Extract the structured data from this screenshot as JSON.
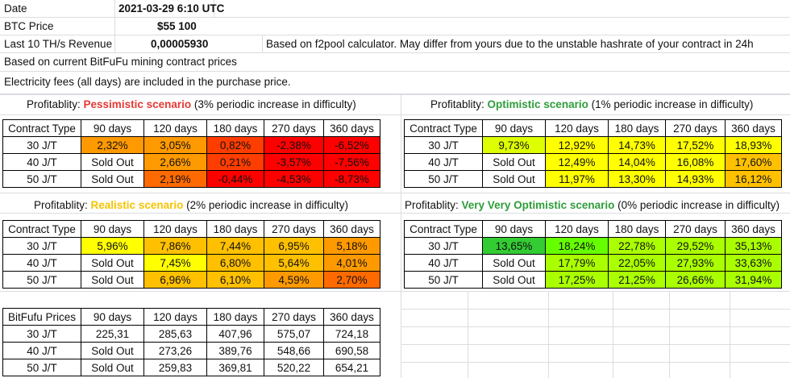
{
  "header": {
    "date_label": "Date",
    "date_value": "2021-03-29 6:10  UTC",
    "btc_label": "BTC Price",
    "btc_value": "$55 100",
    "revenue_label": "Last 10 TH/s Revenue",
    "revenue_value": "0,00005930",
    "revenue_note": "Based on f2pool calculator. May differ from yours due to the unstable hashrate of your contract in 24h",
    "contract_note": "Based on current BitFuFu mining contract prices",
    "electricity_note": "Electricity fees (all days) are included in the purchase price."
  },
  "colors": {
    "red": "#ff0000",
    "red_orange": "#ff3d00",
    "orange_red": "#ff6a00",
    "orange": "#ff9900",
    "amber": "#ffc000",
    "yellow": "#ffff00",
    "yellow_green": "#ddff00",
    "lime": "#aaff00",
    "light_green": "#66ff00",
    "green": "#33cc33"
  },
  "pessimistic": {
    "title_prefix": "Profitablity: ",
    "scenario": "Pessimistic scenario",
    "title_suffix": " (3% periodic increase in difficulty)",
    "headers": [
      "Contract Type",
      "90 days",
      "120 days",
      "180 days",
      "270 days",
      "360 days"
    ],
    "rows": [
      {
        "cells": [
          "30 J/T",
          "2,32%",
          "3,05%",
          "0,82%",
          "-2,38%",
          "-6,52%"
        ],
        "colors": [
          "",
          "orange",
          "orange",
          "red_orange",
          "red",
          "red"
        ]
      },
      {
        "cells": [
          "40 J/T",
          "Sold Out",
          "2,66%",
          "0,21%",
          "-3,57%",
          "-7,56%"
        ],
        "colors": [
          "",
          "",
          "orange",
          "red_orange",
          "red",
          "red"
        ]
      },
      {
        "cells": [
          "50 J/T",
          "Sold Out",
          "2,19%",
          "-0,44%",
          "-4,53%",
          "-8,73%"
        ],
        "colors": [
          "",
          "",
          "orange_red",
          "red",
          "red",
          "red"
        ]
      }
    ]
  },
  "optimistic": {
    "title_prefix": "Profitablity: ",
    "scenario": "Optimistic scenario",
    "title_suffix": " (1% periodic increase in difficulty)",
    "headers": [
      "Contract Type",
      "90 days",
      "120 days",
      "180 days",
      "270 days",
      "360 days"
    ],
    "rows": [
      {
        "cells": [
          "30 J/T",
          "9,73%",
          "12,92%",
          "14,73%",
          "17,52%",
          "18,93%"
        ],
        "colors": [
          "",
          "yellow_green",
          "yellow",
          "yellow",
          "yellow",
          "yellow"
        ]
      },
      {
        "cells": [
          "40 J/T",
          "Sold Out",
          "12,49%",
          "14,04%",
          "16,08%",
          "17,60%"
        ],
        "colors": [
          "",
          "",
          "yellow",
          "yellow",
          "yellow",
          "amber"
        ]
      },
      {
        "cells": [
          "50 J/T",
          "Sold Out",
          "11,97%",
          "13,30%",
          "14,93%",
          "16,12%"
        ],
        "colors": [
          "",
          "",
          "yellow",
          "yellow",
          "yellow",
          "amber"
        ]
      }
    ]
  },
  "realistic": {
    "title_prefix": "Profitablity: ",
    "scenario": "Realistic scenario",
    "title_suffix": " (2% periodic increase in difficulty)",
    "headers": [
      "Contract Type",
      "90 days",
      "120 days",
      "180 days",
      "270 days",
      "360 days"
    ],
    "rows": [
      {
        "cells": [
          "30 J/T",
          "5,96%",
          "7,86%",
          "7,44%",
          "6,95%",
          "5,18%"
        ],
        "colors": [
          "",
          "yellow",
          "amber",
          "amber",
          "amber",
          "orange"
        ]
      },
      {
        "cells": [
          "40 J/T",
          "Sold Out",
          "7,45%",
          "6,80%",
          "5,64%",
          "4,01%"
        ],
        "colors": [
          "",
          "",
          "yellow",
          "amber",
          "amber",
          "orange"
        ]
      },
      {
        "cells": [
          "50 J/T",
          "Sold Out",
          "6,96%",
          "6,10%",
          "4,59%",
          "2,70%"
        ],
        "colors": [
          "",
          "",
          "amber",
          "amber",
          "orange",
          "orange_red"
        ]
      }
    ]
  },
  "very_optimistic": {
    "title_prefix": "Profitablity: ",
    "scenario": "Very Very Optimistic scenario",
    "title_suffix": " (0% periodic increase in difficulty)",
    "headers": [
      "Contract Type",
      "90 days",
      "120 days",
      "180 days",
      "270 days",
      "360 days"
    ],
    "rows": [
      {
        "cells": [
          "30 J/T",
          "13,65%",
          "18,24%",
          "22,78%",
          "29,52%",
          "35,13%"
        ],
        "colors": [
          "",
          "green",
          "light_green",
          "lime",
          "lime",
          "lime"
        ]
      },
      {
        "cells": [
          "40 J/T",
          "Sold Out",
          "17,79%",
          "22,05%",
          "27,93%",
          "33,63%"
        ],
        "colors": [
          "",
          "",
          "lime",
          "lime",
          "lime",
          "lime"
        ]
      },
      {
        "cells": [
          "50 J/T",
          "Sold Out",
          "17,25%",
          "21,25%",
          "26,66%",
          "31,94%"
        ],
        "colors": [
          "",
          "",
          "lime",
          "lime",
          "lime",
          "lime"
        ]
      }
    ]
  },
  "prices": {
    "headers": [
      "BitFufu Prices",
      "90 days",
      "120 days",
      "180 days",
      "270 days",
      "360 days"
    ],
    "rows": [
      {
        "cells": [
          "30 J/T",
          "225,31",
          "285,63",
          "407,96",
          "575,07",
          "724,18"
        ]
      },
      {
        "cells": [
          "40 J/T",
          "Sold Out",
          "273,26",
          "389,76",
          "548,66",
          "690,58"
        ]
      },
      {
        "cells": [
          "50 J/T",
          "Sold Out",
          "259,83",
          "369,81",
          "520,22",
          "654,21"
        ]
      }
    ]
  }
}
